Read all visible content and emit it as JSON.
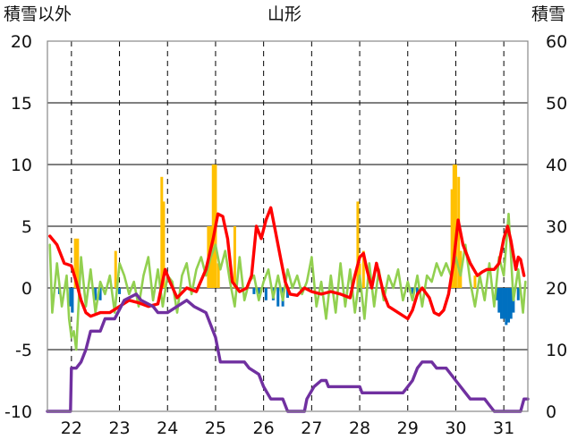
{
  "chart_data": {
    "type": "line",
    "title": "山形",
    "left_axis_label": "積雪以外",
    "right_axis_label": "積雪",
    "left_axis": {
      "min": -10,
      "max": 20,
      "ticks": [
        20,
        15,
        10,
        5,
        0,
        -5,
        -10
      ]
    },
    "right_axis": {
      "min": 0,
      "max": 60,
      "ticks": [
        60,
        50,
        40,
        30,
        20,
        10,
        0
      ]
    },
    "x_range": [
      21.5,
      31.5
    ],
    "day_labels": [
      "22",
      "23",
      "24",
      "25",
      "26",
      "27",
      "28",
      "29",
      "30",
      "31"
    ],
    "colors": {
      "snowfall": "#FFC000",
      "precip": "#0070C0",
      "temperature": "#FF0000",
      "other": "#92D050",
      "snow_depth": "#7030A0",
      "grid": "#000000"
    },
    "series": [
      {
        "name": "snowfall",
        "kind": "bar",
        "axis": "left",
        "points": [
          [
            22.08,
            4.0
          ],
          [
            22.13,
            4.0
          ],
          [
            22.92,
            3.0
          ],
          [
            23.88,
            9.0
          ],
          [
            23.92,
            7.0
          ],
          [
            24.85,
            5.0
          ],
          [
            24.9,
            5.0
          ],
          [
            24.95,
            10.0
          ],
          [
            25.0,
            10.0
          ],
          [
            25.06,
            2.0
          ],
          [
            25.4,
            5.0
          ],
          [
            27.96,
            7.0
          ],
          [
            28.0,
            2.0
          ],
          [
            28.08,
            3.0
          ],
          [
            29.92,
            8.0
          ],
          [
            29.96,
            10.0
          ],
          [
            30.0,
            10.0
          ],
          [
            30.06,
            9.0
          ],
          [
            30.1,
            3.0
          ],
          [
            30.4,
            1.0
          ]
        ]
      },
      {
        "name": "precip",
        "kind": "bar",
        "axis": "left",
        "points": [
          [
            21.75,
            -0.5
          ],
          [
            21.98,
            -1.5
          ],
          [
            22.02,
            -2.0
          ],
          [
            22.5,
            -1.0
          ],
          [
            22.6,
            -1.0
          ],
          [
            23.0,
            -0.5
          ],
          [
            25.8,
            -0.5
          ],
          [
            25.9,
            -0.5
          ],
          [
            26.05,
            -1.0
          ],
          [
            26.2,
            -1.0
          ],
          [
            26.3,
            -1.5
          ],
          [
            26.4,
            -1.5
          ],
          [
            26.5,
            -0.8
          ],
          [
            29.1,
            -0.5
          ],
          [
            29.2,
            -0.5
          ],
          [
            30.85,
            -1.0
          ],
          [
            30.9,
            -2.0
          ],
          [
            30.95,
            -2.5
          ],
          [
            31.0,
            -2.5
          ],
          [
            31.05,
            -3.0
          ],
          [
            31.1,
            -2.8
          ],
          [
            31.15,
            -2.5
          ],
          [
            31.2,
            -2.0
          ],
          [
            31.3,
            -1.0
          ]
        ]
      },
      {
        "name": "temperature",
        "kind": "line",
        "axis": "left",
        "points": [
          [
            21.55,
            4.2
          ],
          [
            21.7,
            3.5
          ],
          [
            21.85,
            2.0
          ],
          [
            22.0,
            1.8
          ],
          [
            22.1,
            0.5
          ],
          [
            22.2,
            -1.0
          ],
          [
            22.3,
            -2.0
          ],
          [
            22.4,
            -2.3
          ],
          [
            22.6,
            -2.0
          ],
          [
            22.8,
            -2.0
          ],
          [
            23.0,
            -1.5
          ],
          [
            23.2,
            -1.0
          ],
          [
            23.4,
            -1.2
          ],
          [
            23.6,
            -1.5
          ],
          [
            23.8,
            -1.3
          ],
          [
            23.95,
            1.5
          ],
          [
            24.05,
            0.5
          ],
          [
            24.2,
            -0.8
          ],
          [
            24.4,
            0.0
          ],
          [
            24.6,
            -0.3
          ],
          [
            24.8,
            1.5
          ],
          [
            24.95,
            4.0
          ],
          [
            25.05,
            6.0
          ],
          [
            25.15,
            5.8
          ],
          [
            25.25,
            4.0
          ],
          [
            25.35,
            0.5
          ],
          [
            25.5,
            -0.3
          ],
          [
            25.65,
            0.0
          ],
          [
            25.75,
            1.0
          ],
          [
            25.85,
            5.0
          ],
          [
            25.95,
            4.0
          ],
          [
            26.05,
            5.5
          ],
          [
            26.15,
            6.5
          ],
          [
            26.25,
            4.5
          ],
          [
            26.35,
            2.5
          ],
          [
            26.45,
            0.5
          ],
          [
            26.55,
            -0.5
          ],
          [
            26.7,
            -0.6
          ],
          [
            26.85,
            0.0
          ],
          [
            27.0,
            -0.3
          ],
          [
            27.2,
            -0.5
          ],
          [
            27.4,
            -0.3
          ],
          [
            27.6,
            -0.5
          ],
          [
            27.8,
            -0.8
          ],
          [
            27.9,
            1.0
          ],
          [
            28.0,
            2.5
          ],
          [
            28.08,
            2.8
          ],
          [
            28.15,
            1.5
          ],
          [
            28.25,
            0.0
          ],
          [
            28.35,
            2.0
          ],
          [
            28.5,
            -0.5
          ],
          [
            28.6,
            -1.5
          ],
          [
            28.8,
            -2.0
          ],
          [
            29.0,
            -2.5
          ],
          [
            29.1,
            -1.8
          ],
          [
            29.2,
            -0.5
          ],
          [
            29.3,
            0.0
          ],
          [
            29.45,
            -0.8
          ],
          [
            29.55,
            -2.0
          ],
          [
            29.65,
            -2.2
          ],
          [
            29.75,
            -1.8
          ],
          [
            29.85,
            -0.5
          ],
          [
            29.95,
            2.0
          ],
          [
            30.05,
            5.5
          ],
          [
            30.15,
            3.5
          ],
          [
            30.3,
            2.0
          ],
          [
            30.45,
            1.0
          ],
          [
            30.55,
            1.3
          ],
          [
            30.65,
            1.5
          ],
          [
            30.8,
            1.5
          ],
          [
            30.9,
            2.0
          ],
          [
            31.0,
            4.0
          ],
          [
            31.08,
            5.0
          ],
          [
            31.15,
            3.8
          ],
          [
            31.25,
            1.5
          ],
          [
            31.3,
            2.5
          ],
          [
            31.35,
            2.3
          ],
          [
            31.42,
            1.0
          ]
        ]
      },
      {
        "name": "other",
        "kind": "line",
        "axis": "left",
        "points": [
          [
            21.55,
            3.5
          ],
          [
            21.6,
            -2.0
          ],
          [
            21.7,
            2.0
          ],
          [
            21.8,
            -1.5
          ],
          [
            21.9,
            1.0
          ],
          [
            21.95,
            -2.5
          ],
          [
            22.0,
            -4.0
          ],
          [
            22.05,
            -3.5
          ],
          [
            22.1,
            -5.0
          ],
          [
            22.2,
            2.5
          ],
          [
            22.3,
            -1.5
          ],
          [
            22.4,
            1.5
          ],
          [
            22.5,
            -2.0
          ],
          [
            22.6,
            0.5
          ],
          [
            22.7,
            -0.5
          ],
          [
            22.8,
            1.0
          ],
          [
            22.9,
            -2.0
          ],
          [
            23.0,
            2.0
          ],
          [
            23.1,
            1.0
          ],
          [
            23.2,
            -0.5
          ],
          [
            23.3,
            0.5
          ],
          [
            23.4,
            -1.5
          ],
          [
            23.5,
            1.0
          ],
          [
            23.6,
            2.5
          ],
          [
            23.7,
            -1.0
          ],
          [
            23.8,
            1.5
          ],
          [
            23.9,
            -1.5
          ],
          [
            24.0,
            1.0
          ],
          [
            24.1,
            0.5
          ],
          [
            24.2,
            -2.0
          ],
          [
            24.3,
            1.0
          ],
          [
            24.4,
            2.0
          ],
          [
            24.5,
            -0.5
          ],
          [
            24.6,
            1.5
          ],
          [
            24.7,
            2.5
          ],
          [
            24.8,
            1.0
          ],
          [
            24.9,
            2.5
          ],
          [
            25.0,
            3.5
          ],
          [
            25.1,
            1.5
          ],
          [
            25.2,
            3.0
          ],
          [
            25.3,
            0.5
          ],
          [
            25.4,
            -1.5
          ],
          [
            25.5,
            2.5
          ],
          [
            25.6,
            -1.0
          ],
          [
            25.7,
            0.5
          ],
          [
            25.8,
            1.0
          ],
          [
            25.9,
            -1.0
          ],
          [
            26.0,
            0.5
          ],
          [
            26.1,
            1.5
          ],
          [
            26.2,
            -0.8
          ],
          [
            26.3,
            1.0
          ],
          [
            26.4,
            -1.0
          ],
          [
            26.5,
            1.5
          ],
          [
            26.6,
            0.0
          ],
          [
            26.7,
            1.0
          ],
          [
            26.8,
            -0.5
          ],
          [
            26.9,
            0.5
          ],
          [
            27.0,
            2.5
          ],
          [
            27.1,
            -1.5
          ],
          [
            27.2,
            0.5
          ],
          [
            27.3,
            -2.5
          ],
          [
            27.4,
            1.0
          ],
          [
            27.5,
            -2.0
          ],
          [
            27.6,
            2.0
          ],
          [
            27.7,
            -1.5
          ],
          [
            27.8,
            1.5
          ],
          [
            27.9,
            -2.0
          ],
          [
            28.0,
            1.0
          ],
          [
            28.1,
            -2.5
          ],
          [
            28.2,
            2.0
          ],
          [
            28.3,
            -1.5
          ],
          [
            28.4,
            1.5
          ],
          [
            28.5,
            -1.0
          ],
          [
            28.6,
            1.0
          ],
          [
            28.7,
            0.0
          ],
          [
            28.8,
            1.5
          ],
          [
            28.9,
            -1.0
          ],
          [
            29.0,
            0.5
          ],
          [
            29.1,
            -1.0
          ],
          [
            29.2,
            1.0
          ],
          [
            29.3,
            -1.5
          ],
          [
            29.4,
            1.0
          ],
          [
            29.5,
            0.5
          ],
          [
            29.6,
            2.0
          ],
          [
            29.7,
            1.0
          ],
          [
            29.8,
            2.0
          ],
          [
            29.9,
            1.0
          ],
          [
            30.0,
            2.5
          ],
          [
            30.1,
            1.0
          ],
          [
            30.2,
            3.5
          ],
          [
            30.3,
            0.5
          ],
          [
            30.4,
            -1.5
          ],
          [
            30.5,
            1.0
          ],
          [
            30.6,
            -1.0
          ],
          [
            30.7,
            2.0
          ],
          [
            30.8,
            -1.5
          ],
          [
            30.9,
            2.5
          ],
          [
            31.0,
            1.0
          ],
          [
            31.1,
            6.0
          ],
          [
            31.2,
            -1.0
          ],
          [
            31.3,
            1.5
          ],
          [
            31.4,
            -2.0
          ],
          [
            31.45,
            0.5
          ]
        ]
      },
      {
        "name": "snow_depth",
        "kind": "line",
        "axis": "right",
        "points": [
          [
            21.5,
            0
          ],
          [
            21.98,
            0
          ],
          [
            22.0,
            7
          ],
          [
            22.1,
            7
          ],
          [
            22.2,
            8
          ],
          [
            22.3,
            10
          ],
          [
            22.4,
            13
          ],
          [
            22.6,
            13
          ],
          [
            22.7,
            15
          ],
          [
            22.9,
            15
          ],
          [
            23.1,
            18
          ],
          [
            23.35,
            19
          ],
          [
            23.45,
            18
          ],
          [
            23.7,
            17
          ],
          [
            23.8,
            16
          ],
          [
            24.0,
            16
          ],
          [
            24.2,
            17
          ],
          [
            24.4,
            18
          ],
          [
            24.55,
            17
          ],
          [
            24.8,
            16
          ],
          [
            25.0,
            12
          ],
          [
            25.1,
            8
          ],
          [
            25.2,
            8
          ],
          [
            25.6,
            8
          ],
          [
            25.7,
            7
          ],
          [
            25.9,
            6
          ],
          [
            26.0,
            4
          ],
          [
            26.15,
            2
          ],
          [
            26.4,
            2
          ],
          [
            26.45,
            1
          ],
          [
            26.5,
            0
          ],
          [
            26.85,
            0
          ],
          [
            26.9,
            2
          ],
          [
            27.05,
            4
          ],
          [
            27.2,
            5
          ],
          [
            27.3,
            5
          ],
          [
            27.35,
            4
          ],
          [
            27.9,
            4
          ],
          [
            28.0,
            4
          ],
          [
            28.05,
            3
          ],
          [
            28.9,
            3
          ],
          [
            29.0,
            4
          ],
          [
            29.1,
            5
          ],
          [
            29.2,
            7
          ],
          [
            29.3,
            8
          ],
          [
            29.5,
            8
          ],
          [
            29.6,
            7
          ],
          [
            29.8,
            7
          ],
          [
            30.0,
            5
          ],
          [
            30.2,
            3
          ],
          [
            30.3,
            2
          ],
          [
            30.6,
            2
          ],
          [
            30.7,
            1
          ],
          [
            30.8,
            0
          ],
          [
            31.35,
            0
          ],
          [
            31.42,
            2
          ],
          [
            31.5,
            2
          ]
        ]
      }
    ]
  }
}
